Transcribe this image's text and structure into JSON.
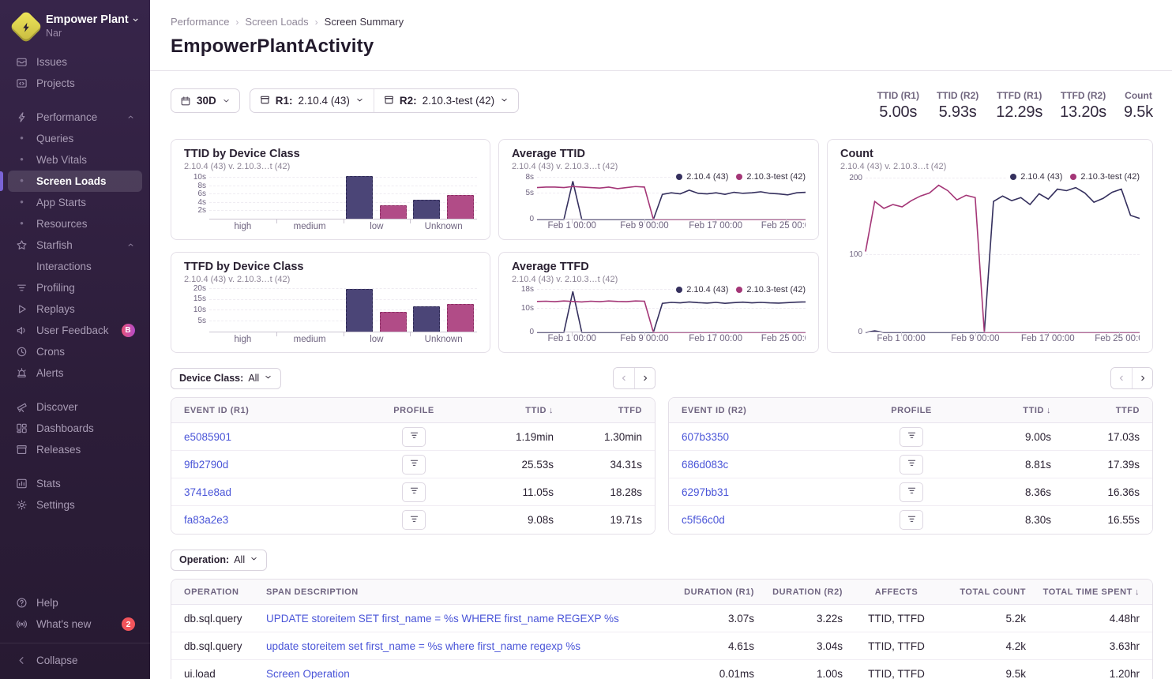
{
  "colors": {
    "accent": "#7a63d6",
    "link": "#4a55d8",
    "r1_line": "#35305e",
    "r2_line": "#a43677",
    "r1_bar": "#4b4577",
    "r1_bar_border": "#2e2a55",
    "r2_bar": "#b14c87",
    "r2_bar_border": "#8b2f63",
    "badge_red": "#f2545b"
  },
  "sidebar": {
    "org": "Empower Plant",
    "project": "Nar",
    "sections": [
      {
        "items": [
          {
            "icon": "issues",
            "label": "Issues"
          },
          {
            "icon": "projects",
            "label": "Projects"
          }
        ]
      },
      {
        "items": [
          {
            "icon": "performance",
            "label": "Performance",
            "chevron": "up"
          },
          {
            "bullet": true,
            "label": "Queries"
          },
          {
            "bullet": true,
            "label": "Web Vitals"
          },
          {
            "bullet": true,
            "label": "Screen Loads",
            "active": true
          },
          {
            "bullet": true,
            "label": "App Starts"
          },
          {
            "bullet": true,
            "label": "Resources"
          },
          {
            "icon": "starfish",
            "label": "Starfish",
            "chevron": "up"
          },
          {
            "indent": true,
            "label": "Interactions"
          },
          {
            "icon": "profiling",
            "label": "Profiling"
          },
          {
            "icon": "replays",
            "label": "Replays"
          },
          {
            "icon": "user-feedback",
            "label": "User Feedback",
            "badge": "B"
          },
          {
            "icon": "crons",
            "label": "Crons"
          },
          {
            "icon": "alerts",
            "label": "Alerts"
          }
        ]
      },
      {
        "items": [
          {
            "icon": "discover",
            "label": "Discover"
          },
          {
            "icon": "dashboards",
            "label": "Dashboards"
          },
          {
            "icon": "releases",
            "label": "Releases"
          }
        ]
      },
      {
        "items": [
          {
            "icon": "stats",
            "label": "Stats"
          },
          {
            "icon": "settings",
            "label": "Settings"
          }
        ]
      }
    ],
    "footer_items": [
      {
        "icon": "help",
        "label": "Help"
      },
      {
        "icon": "whats-new",
        "label": "What's new",
        "badge": "2"
      }
    ],
    "collapse_label": "Collapse"
  },
  "breadcrumb": {
    "items": [
      "Performance",
      "Screen Loads",
      "Screen Summary"
    ]
  },
  "page": {
    "title": "EmpowerPlantActivity"
  },
  "filters": {
    "date": "30D",
    "releases": [
      {
        "prefix": "R1:",
        "value": "2.10.4 (43)"
      },
      {
        "prefix": "R2:",
        "value": "2.10.3-test (42)"
      }
    ],
    "device_class": {
      "label": "Device Class:",
      "value": "All"
    },
    "operation": {
      "label": "Operation:",
      "value": "All"
    }
  },
  "metrics": [
    {
      "label": "TTID (R1)",
      "value": "5.00s"
    },
    {
      "label": "TTID (R2)",
      "value": "5.93s"
    },
    {
      "label": "TTFD (R1)",
      "value": "12.29s"
    },
    {
      "label": "TTFD (R2)",
      "value": "13.20s"
    },
    {
      "label": "Count",
      "value": "9.5k"
    }
  ],
  "chart_data": [
    {
      "id": "ttid-bar",
      "type": "bar",
      "title": "TTID by Device Class",
      "subtitle": "2.10.4 (43) v. 2.10.3…t (42)",
      "categories": [
        "high",
        "medium",
        "low",
        "Unknown"
      ],
      "series": [
        {
          "name": "2.10.4 (43)",
          "values": [
            0,
            0,
            10.5,
            4.7
          ]
        },
        {
          "name": "2.10.3-test (42)",
          "values": [
            0,
            0,
            3.5,
            5.9
          ]
        }
      ],
      "unit": "s",
      "yticks": [
        2,
        4,
        6,
        8,
        10
      ],
      "ymax": 10.8
    },
    {
      "id": "ttfd-bar",
      "type": "bar",
      "title": "TTFD by Device Class",
      "subtitle": "2.10.4 (43) v. 2.10.3…t (42)",
      "categories": [
        "high",
        "medium",
        "low",
        "Unknown"
      ],
      "series": [
        {
          "name": "2.10.4 (43)",
          "values": [
            0,
            0,
            20,
            12
          ]
        },
        {
          "name": "2.10.3-test (42)",
          "values": [
            0,
            0,
            9.5,
            13
          ]
        }
      ],
      "unit": "s",
      "yticks": [
        5,
        10,
        15,
        20
      ],
      "ymax": 20.6
    },
    {
      "id": "avg-ttid",
      "type": "line",
      "title": "Average TTID",
      "subtitle": "2.10.4 (43) v. 2.10.3…t (42)",
      "legend": [
        "2.10.4 (43)",
        "2.10.3-test (42)"
      ],
      "x_labels": [
        "Feb 1 00:00",
        "Feb 9 00:00",
        "Feb 17 00:00",
        "Feb 25 00:0"
      ],
      "x_label_pos": [
        13,
        40,
        66.5,
        92.5
      ],
      "yticks": [
        {
          "v": 0,
          "label": "0"
        },
        {
          "v": 5,
          "label": "5s"
        },
        {
          "v": 8,
          "label": "8s"
        }
      ],
      "ymax": 8.6,
      "series": [
        {
          "name": "2.10.4 (43)",
          "values": [
            0,
            0,
            0,
            0,
            7.3,
            0,
            0,
            0,
            0,
            0,
            0,
            0,
            0,
            0,
            4.8,
            5.1,
            4.9,
            5.6,
            5.0,
            4.9,
            5.1,
            4.8,
            5.2,
            5.0,
            5.1,
            5.3,
            5.0,
            4.9,
            4.7,
            5.1,
            5.2
          ]
        },
        {
          "name": "2.10.3-test (42)",
          "values": [
            6.1,
            6.2,
            6.2,
            6.1,
            6.3,
            6.2,
            6.1,
            6.0,
            6.2,
            5.9,
            6.1,
            6.3,
            6.2,
            0,
            0,
            0,
            0,
            0,
            0,
            0,
            0,
            0,
            0,
            0,
            0,
            0,
            0,
            0,
            0,
            0,
            0
          ]
        }
      ]
    },
    {
      "id": "avg-ttfd",
      "type": "line",
      "title": "Average TTFD",
      "subtitle": "2.10.4 (43) v. 2.10.3…t (42)",
      "legend": [
        "2.10.4 (43)",
        "2.10.3-test (42)"
      ],
      "x_labels": [
        "Feb 1 00:00",
        "Feb 9 00:00",
        "Feb 17 00:00",
        "Feb 25 00:0"
      ],
      "x_label_pos": [
        13,
        40,
        66.5,
        92.5
      ],
      "yticks": [
        {
          "v": 0,
          "label": "0"
        },
        {
          "v": 10,
          "label": "10s"
        },
        {
          "v": 18,
          "label": "18s"
        }
      ],
      "ymax": 18.9,
      "series": [
        {
          "name": "2.10.4 (43)",
          "values": [
            0,
            0,
            0,
            0,
            17.2,
            0,
            0,
            0,
            0,
            0,
            0,
            0,
            0,
            0,
            12.2,
            12.6,
            12.4,
            12.8,
            12.5,
            12.3,
            12.6,
            12.2,
            12.5,
            12.7,
            12.4,
            12.6,
            12.4,
            12.3,
            12.5,
            12.7,
            12.8
          ]
        },
        {
          "name": "2.10.3-test (42)",
          "values": [
            13.0,
            13.1,
            12.9,
            13.2,
            13.0,
            12.8,
            13.1,
            12.9,
            13.2,
            13.0,
            12.9,
            13.2,
            13.1,
            0,
            0,
            0,
            0,
            0,
            0,
            0,
            0,
            0,
            0,
            0,
            0,
            0,
            0,
            0,
            0,
            0,
            0
          ]
        }
      ]
    },
    {
      "id": "count",
      "type": "line",
      "tall": true,
      "title": "Count",
      "subtitle": "2.10.4 (43) v. 2.10.3…t (42)",
      "legend": [
        "2.10.4 (43)",
        "2.10.3-test (42)"
      ],
      "x_labels": [
        "Feb 1 00:00",
        "Feb 9 00:00",
        "Feb 17 00:00",
        "Feb 25 00:0"
      ],
      "x_label_pos": [
        13,
        40,
        66.5,
        92.5
      ],
      "yticks": [
        {
          "v": 0,
          "label": "0"
        },
        {
          "v": 100,
          "label": "100"
        },
        {
          "v": 200,
          "label": "200"
        }
      ],
      "ymax": 205,
      "series": [
        {
          "name": "2.10.4 (43)",
          "values": [
            0,
            2,
            0,
            0,
            0,
            0,
            0,
            0,
            0,
            0,
            0,
            0,
            0,
            0,
            170,
            177,
            171,
            175,
            166,
            180,
            173,
            186,
            184,
            188,
            181,
            169,
            174,
            182,
            186,
            152,
            148
          ]
        },
        {
          "name": "2.10.3-test (42)",
          "values": [
            105,
            170,
            161,
            166,
            163,
            171,
            177,
            181,
            191,
            184,
            172,
            178,
            175,
            0,
            0,
            0,
            0,
            0,
            0,
            0,
            0,
            0,
            0,
            0,
            0,
            0,
            0,
            0,
            0,
            0,
            0
          ]
        }
      ]
    }
  ],
  "event_tables": [
    {
      "headers": [
        {
          "label": "EVENT ID (R1)"
        },
        {
          "label": "PROFILE",
          "align": "c"
        },
        {
          "label": "TTID",
          "align": "r",
          "sort": "desc"
        },
        {
          "label": "TTFD",
          "align": "r"
        }
      ],
      "rows": [
        {
          "event_id": "e5085901",
          "ttid": "1.19min",
          "ttfd": "1.30min"
        },
        {
          "event_id": "9fb2790d",
          "ttid": "25.53s",
          "ttfd": "34.31s"
        },
        {
          "event_id": "3741e8ad",
          "ttid": "11.05s",
          "ttfd": "18.28s"
        },
        {
          "event_id": "fa83a2e3",
          "ttid": "9.08s",
          "ttfd": "19.71s"
        }
      ]
    },
    {
      "headers": [
        {
          "label": "EVENT ID (R2)"
        },
        {
          "label": "PROFILE",
          "align": "c"
        },
        {
          "label": "TTID",
          "align": "r",
          "sort": "desc"
        },
        {
          "label": "TTFD",
          "align": "r"
        }
      ],
      "rows": [
        {
          "event_id": "607b3350",
          "ttid": "9.00s",
          "ttfd": "17.03s"
        },
        {
          "event_id": "686d083c",
          "ttid": "8.81s",
          "ttfd": "17.39s"
        },
        {
          "event_id": "6297bb31",
          "ttid": "8.36s",
          "ttfd": "16.36s"
        },
        {
          "event_id": "c5f56c0d",
          "ttid": "8.30s",
          "ttfd": "16.55s"
        }
      ]
    }
  ],
  "spans_table": {
    "headers": [
      {
        "label": "OPERATION"
      },
      {
        "label": "SPAN DESCRIPTION"
      },
      {
        "label": "DURATION (R1)",
        "align": "r"
      },
      {
        "label": "DURATION (R2)",
        "align": "r"
      },
      {
        "label": "AFFECTS",
        "align": "c"
      },
      {
        "label": "TOTAL COUNT",
        "align": "r"
      },
      {
        "label": "TOTAL TIME SPENT",
        "align": "r",
        "sort": "desc"
      }
    ],
    "rows": [
      {
        "operation": "db.sql.query",
        "description": "UPDATE storeitem SET first_name = %s WHERE first_name REGEXP %s",
        "duration_r1": "3.07s",
        "duration_r2": "3.22s",
        "affects": "TTID, TTFD",
        "total_count": "5.2k",
        "total_time": "4.48hr"
      },
      {
        "operation": "db.sql.query",
        "description": "update storeitem set first_name = %s where first_name regexp %s",
        "duration_r1": "4.61s",
        "duration_r2": "3.04s",
        "affects": "TTID, TTFD",
        "total_count": "4.2k",
        "total_time": "3.63hr"
      },
      {
        "operation": "ui.load",
        "description": "Screen Operation",
        "duration_r1": "0.01ms",
        "duration_r2": "1.00s",
        "affects": "TTID, TTFD",
        "total_count": "9.5k",
        "total_time": "1.20hr"
      }
    ]
  }
}
